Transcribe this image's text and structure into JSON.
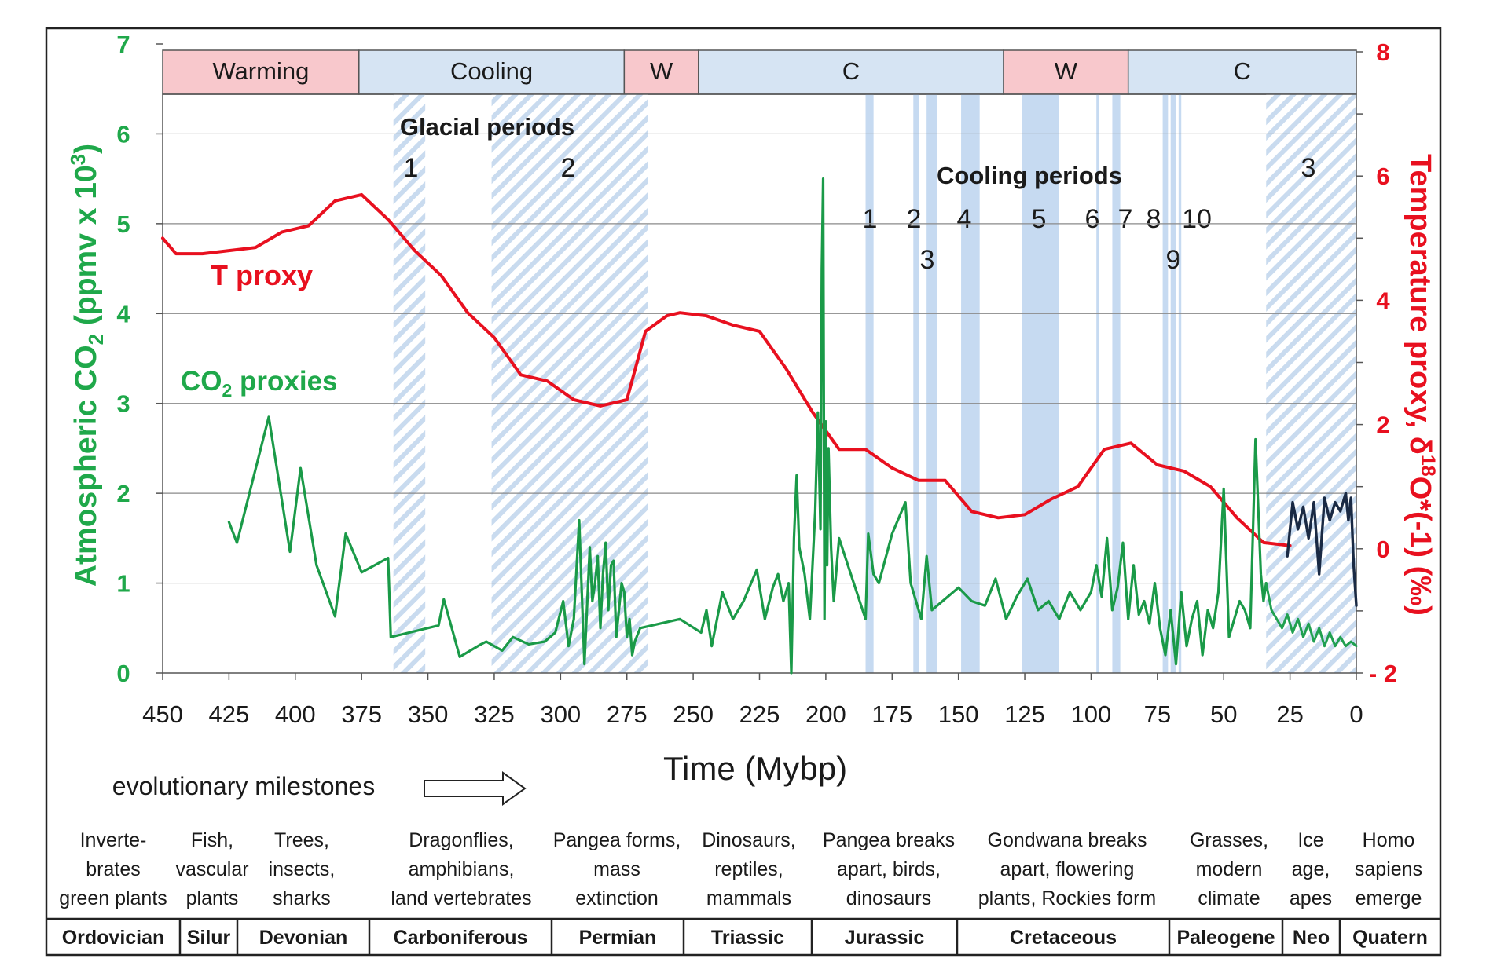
{
  "chart_data": {
    "type": "line",
    "xlabel": "Time (Mybp)",
    "ylabel_left": "Atmospheric CO₂ (ppmv x 10³)",
    "ylabel_left_parts": {
      "a": "Atmospheric CO",
      "sub": "2",
      "b": " (ppmv x 10",
      "sup": "3",
      "c": ")"
    },
    "ylabel_right": "Temperature proxy, δ¹⁸O*(-1) (‰)",
    "ylabel_right_parts": {
      "a": "Temperature proxy, δ",
      "sup": "18",
      "b": "O*(-1) (‰)"
    },
    "xlim": [
      450,
      0
    ],
    "ylim_left": [
      0,
      7
    ],
    "ylim_right": [
      -2,
      8
    ],
    "x_ticks": [
      450,
      425,
      400,
      375,
      350,
      325,
      300,
      275,
      250,
      225,
      200,
      175,
      150,
      125,
      100,
      75,
      50,
      25,
      0
    ],
    "y_left_ticks": [
      0,
      1,
      2,
      3,
      4,
      5,
      6,
      7
    ],
    "y_right_ticks": [
      -2,
      0,
      2,
      4,
      6,
      8
    ],
    "y_right_tick_labels": [
      "- 2",
      "0",
      "2",
      "4",
      "6",
      "8"
    ],
    "gridlines_left": [
      1,
      2,
      3,
      4,
      5,
      6
    ],
    "climate_bands": [
      {
        "label": "Warming",
        "start": 450,
        "end": 376,
        "kind": "warm"
      },
      {
        "label": "Cooling",
        "start": 376,
        "end": 276,
        "kind": "cool"
      },
      {
        "label": "W",
        "start": 276,
        "end": 248,
        "kind": "warm"
      },
      {
        "label": "C",
        "start": 248,
        "end": 133,
        "kind": "cool"
      },
      {
        "label": "W",
        "start": 133,
        "end": 86,
        "kind": "warm"
      },
      {
        "label": "C",
        "start": 86,
        "end": 0,
        "kind": "cool"
      }
    ],
    "glacial_periods_label": "Glacial periods",
    "glacial_periods": [
      {
        "label": "1",
        "start": 363,
        "end": 351
      },
      {
        "label": "2",
        "start": 326,
        "end": 267
      },
      {
        "label": "3",
        "start": 34,
        "end": 0
      }
    ],
    "cooling_periods_label": "Cooling periods",
    "cooling_periods": [
      {
        "label": "1",
        "start": 185,
        "end": 182
      },
      {
        "label": "2",
        "start": 167,
        "end": 165
      },
      {
        "label": "3",
        "start": 162,
        "end": 158
      },
      {
        "label": "4",
        "start": 149,
        "end": 142
      },
      {
        "label": "5",
        "start": 126,
        "end": 112
      },
      {
        "label": "6",
        "start": 98,
        "end": 97
      },
      {
        "label": "7",
        "start": 92,
        "end": 89
      },
      {
        "label": "8",
        "start": 73,
        "end": 71
      },
      {
        "label": "9",
        "start": 70,
        "end": 68
      },
      {
        "label": "10",
        "start": 67,
        "end": 66
      }
    ],
    "series": [
      {
        "name": "T proxy",
        "axis": "right",
        "color": "#e8101f",
        "x": [
          450,
          445,
          435,
          425,
          415,
          405,
          395,
          385,
          375,
          365,
          355,
          345,
          335,
          325,
          315,
          305,
          295,
          285,
          275,
          268,
          260,
          255,
          245,
          235,
          225,
          215,
          205,
          195,
          185,
          175,
          165,
          155,
          145,
          135,
          125,
          115,
          105,
          95,
          85,
          75,
          65,
          55,
          45,
          35,
          25
        ],
        "values": [
          5.0,
          4.75,
          4.75,
          4.8,
          4.85,
          5.1,
          5.2,
          5.6,
          5.7,
          5.3,
          4.8,
          4.4,
          3.8,
          3.4,
          2.8,
          2.7,
          2.4,
          2.3,
          2.4,
          3.5,
          3.75,
          3.8,
          3.75,
          3.6,
          3.5,
          2.9,
          2.2,
          1.6,
          1.6,
          1.3,
          1.1,
          1.1,
          0.6,
          0.5,
          0.55,
          0.8,
          1.0,
          1.6,
          1.7,
          1.35,
          1.25,
          1.0,
          0.5,
          0.1,
          0.05
        ]
      },
      {
        "name": "CO₂ proxies",
        "axis": "left",
        "color": "#1a9a48",
        "x": [
          425,
          422,
          410,
          402,
          398,
          392,
          385,
          381,
          375,
          365,
          364,
          346,
          344,
          338,
          330,
          328,
          322,
          318,
          312,
          306,
          302,
          299,
          297,
          295,
          293,
          292,
          291,
          289,
          288,
          287,
          286,
          285,
          284,
          283,
          282,
          281,
          280,
          279,
          277,
          276,
          275,
          274,
          273,
          272,
          270,
          255,
          247,
          245,
          243,
          241,
          239,
          235,
          231,
          226,
          223,
          220,
          218,
          216,
          214,
          213,
          212,
          211,
          210,
          208,
          206,
          204,
          203,
          202,
          201.5,
          201,
          200.5,
          200,
          199.5,
          199,
          198,
          197,
          195,
          190,
          185,
          184,
          182,
          180,
          175,
          170,
          168,
          166,
          164,
          162,
          160,
          156,
          150,
          145,
          140,
          136,
          132,
          128,
          124,
          120,
          116,
          112,
          108,
          104,
          100,
          98,
          96,
          94,
          92,
          90,
          88,
          86,
          84,
          82,
          80,
          78,
          76,
          74,
          72,
          70,
          68,
          66,
          64,
          62,
          60,
          58,
          56,
          54,
          52,
          50,
          48,
          46,
          44,
          42,
          40,
          38,
          36,
          35,
          34
        ],
        "values": [
          1.68,
          1.45,
          2.85,
          1.35,
          2.28,
          1.2,
          0.63,
          1.55,
          1.12,
          1.28,
          0.4,
          0.53,
          0.82,
          0.18,
          0.32,
          0.35,
          0.25,
          0.4,
          0.32,
          0.35,
          0.45,
          0.8,
          0.3,
          0.6,
          1.7,
          0.9,
          0.1,
          1.4,
          0.8,
          1.0,
          1.3,
          0.5,
          1.1,
          1.45,
          0.7,
          1.2,
          1.25,
          0.4,
          1.0,
          0.9,
          0.4,
          0.6,
          0.2,
          0.35,
          0.5,
          0.6,
          0.45,
          0.7,
          0.3,
          0.6,
          0.9,
          0.6,
          0.8,
          1.15,
          0.6,
          0.95,
          1.1,
          0.8,
          1.0,
          0.0,
          1.5,
          2.2,
          1.4,
          1.1,
          0.6,
          1.8,
          2.9,
          1.6,
          4.5,
          5.5,
          0.6,
          2.8,
          1.2,
          2.5,
          1.4,
          0.8,
          1.5,
          1.05,
          0.6,
          1.55,
          1.1,
          1.0,
          1.55,
          1.9,
          1.0,
          0.8,
          0.6,
          1.3,
          0.7,
          0.8,
          0.95,
          0.8,
          0.75,
          1.05,
          0.6,
          0.85,
          1.05,
          0.7,
          0.8,
          0.6,
          0.9,
          0.7,
          0.9,
          1.2,
          0.85,
          1.5,
          0.7,
          0.95,
          1.45,
          0.6,
          1.2,
          0.65,
          0.8,
          0.55,
          1.0,
          0.5,
          0.2,
          0.7,
          0.1,
          0.9,
          0.3,
          0.6,
          0.8,
          0.2,
          0.7,
          0.5,
          0.9,
          2.05,
          0.4,
          0.6,
          0.8,
          0.7,
          0.5,
          2.6,
          1.1,
          0.8,
          1.0
        ]
      },
      {
        "name": "",
        "axis": "left",
        "color": "#20a050",
        "x": [
          34,
          32,
          30,
          28,
          26,
          24,
          22,
          20,
          18,
          16,
          14,
          12,
          10,
          8,
          6,
          4,
          2,
          0
        ],
        "values": [
          1.0,
          0.7,
          0.6,
          0.5,
          0.65,
          0.45,
          0.6,
          0.4,
          0.55,
          0.35,
          0.5,
          0.3,
          0.45,
          0.3,
          0.4,
          0.3,
          0.35,
          0.3
        ]
      },
      {
        "name": "",
        "axis": "left",
        "color": "#1a2a44",
        "x": [
          26,
          24,
          22,
          20,
          18,
          16,
          14,
          12,
          10,
          8,
          6,
          4,
          3,
          2,
          1,
          0
        ],
        "values": [
          1.3,
          1.9,
          1.6,
          1.85,
          1.5,
          1.9,
          1.1,
          1.95,
          1.7,
          1.9,
          1.8,
          2.0,
          1.7,
          1.95,
          1.2,
          0.75
        ]
      }
    ],
    "series_labels": [
      {
        "text_parts": {
          "a": "T proxy"
        },
        "color": "#e8101f"
      },
      {
        "text_parts": {
          "a": "CO",
          "sub": "2",
          "b": " proxies"
        },
        "color": "#1fa84a"
      }
    ],
    "milestones_label": "evolutionary milestones",
    "milestones": [
      {
        "lines": [
          "Inverte-",
          "brates",
          "green plants"
        ]
      },
      {
        "lines": [
          "Fish,",
          "vascular",
          "plants"
        ]
      },
      {
        "lines": [
          "Trees,",
          "insects,",
          "sharks"
        ]
      },
      {
        "lines": [
          "Dragonflies,",
          "amphibians,",
          "land vertebrates"
        ]
      },
      {
        "lines": [
          "Pangea forms,",
          "mass",
          "extinction"
        ]
      },
      {
        "lines": [
          "Dinosaurs,",
          "reptiles,",
          "mammals"
        ]
      },
      {
        "lines": [
          "Pangea breaks",
          "apart, birds,",
          "dinosaurs"
        ]
      },
      {
        "lines": [
          "Gondwana  breaks",
          "apart, flowering",
          "plants, Rockies form"
        ]
      },
      {
        "lines": [
          "Grasses,",
          "modern",
          "climate"
        ]
      },
      {
        "lines": [
          "Ice",
          "age,",
          "apes"
        ]
      },
      {
        "lines": [
          "Homo",
          "sapiens",
          "emerge"
        ]
      }
    ],
    "periods": [
      {
        "label": "Ordovician"
      },
      {
        "label": "Silur"
      },
      {
        "label": "Devonian"
      },
      {
        "label": "Carboniferous"
      },
      {
        "label": "Permian"
      },
      {
        "label": "Triassic"
      },
      {
        "label": "Jurassic"
      },
      {
        "label": "Cretaceous"
      },
      {
        "label": "Paleogene"
      },
      {
        "label": "Neo"
      },
      {
        "label": "Quatern"
      }
    ],
    "colors": {
      "warm": "#f8c8cc",
      "cool": "#d6e4f3",
      "band_stripe": "#a9c5e6",
      "cooling_fill": "#bcd4ee",
      "axis_left": "#1fa84a",
      "axis_right": "#e8101f"
    }
  }
}
